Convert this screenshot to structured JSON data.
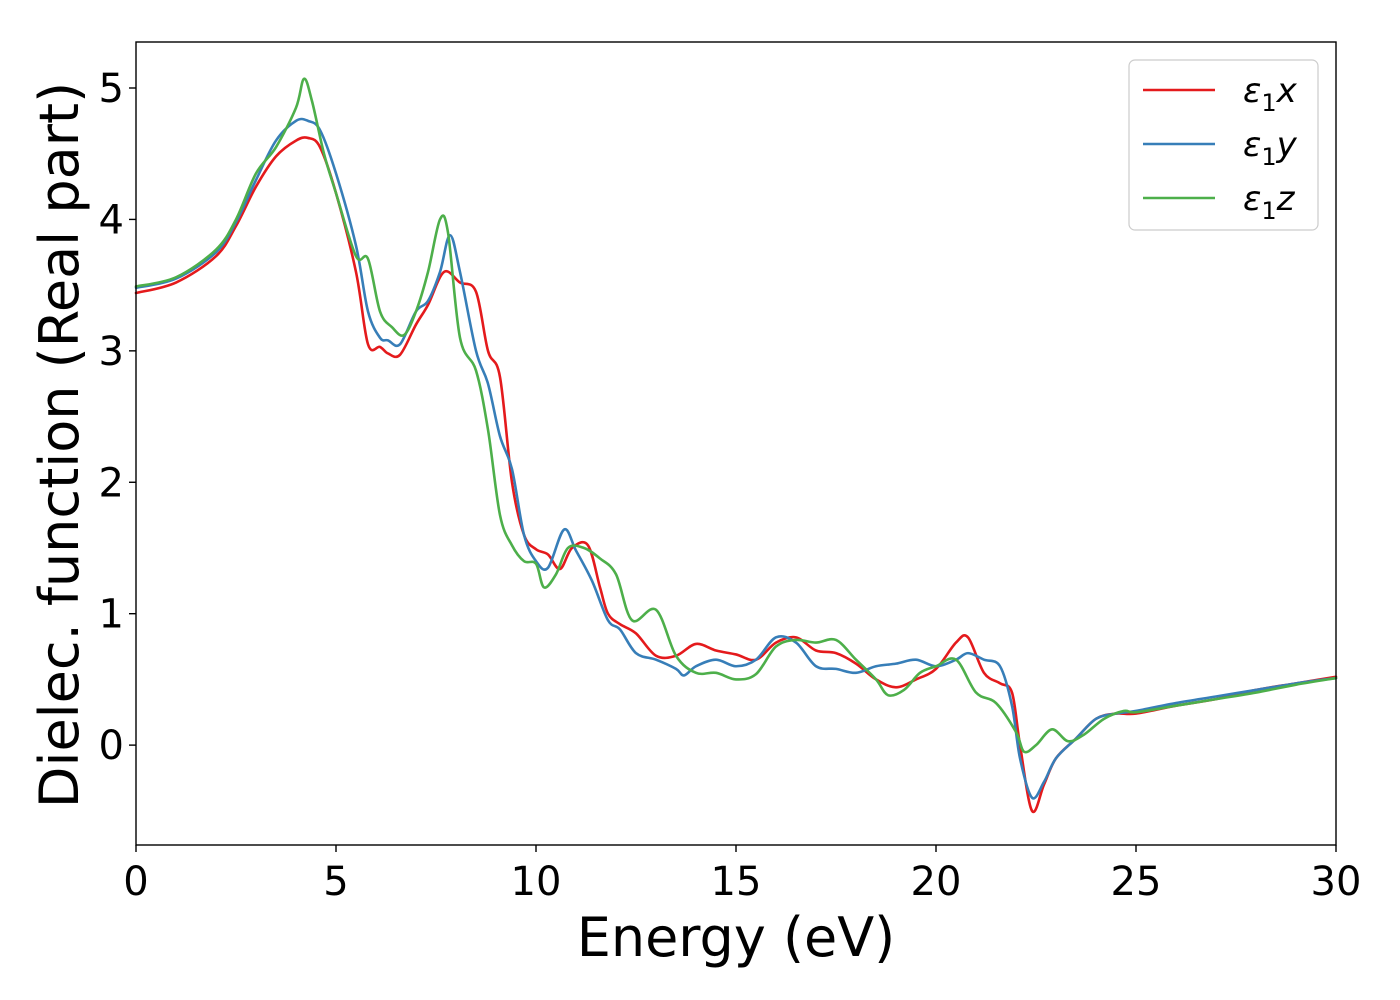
{
  "chart_data": {
    "type": "line",
    "title": "",
    "xlabel": "Energy (eV)",
    "ylabel": "Dielec. function (Real part)",
    "xlim": [
      0,
      30
    ],
    "ylim": [
      -0.76,
      5.35
    ],
    "xticks": [
      0,
      5,
      10,
      15,
      20,
      25,
      30
    ],
    "yticks": [
      0,
      1,
      2,
      3,
      4,
      5
    ],
    "grid": false,
    "legend_position": "top-right",
    "series": [
      {
        "name": "ε₁x",
        "legend_base": "ε",
        "legend_sub": "1",
        "legend_var": "x",
        "color": "#e41a1c",
        "x": [
          0,
          1,
          2,
          2.5,
          3,
          3.5,
          4,
          4.3,
          4.6,
          5,
          5.5,
          5.8,
          6.1,
          6.3,
          6.6,
          7,
          7.3,
          7.7,
          8.1,
          8.5,
          8.8,
          9.1,
          9.4,
          9.7,
          10,
          10.3,
          10.6,
          10.9,
          11.3,
          11.6,
          11.8,
          12.1,
          12.5,
          13,
          13.5,
          14,
          14.5,
          15,
          15.5,
          16,
          16.5,
          17,
          17.5,
          18,
          18.5,
          19,
          19.5,
          20,
          20.5,
          20.8,
          21.2,
          21.6,
          21.9,
          22.1,
          22.4,
          22.7,
          23,
          23.5,
          24,
          24.5,
          25,
          26,
          27,
          28,
          29,
          30
        ],
        "y": [
          3.44,
          3.52,
          3.72,
          3.95,
          4.25,
          4.48,
          4.6,
          4.62,
          4.55,
          4.2,
          3.6,
          3.05,
          3.03,
          2.98,
          2.97,
          3.2,
          3.35,
          3.6,
          3.52,
          3.45,
          3.0,
          2.8,
          2.0,
          1.6,
          1.49,
          1.45,
          1.34,
          1.5,
          1.52,
          1.2,
          1.0,
          0.92,
          0.85,
          0.68,
          0.68,
          0.77,
          0.72,
          0.69,
          0.65,
          0.78,
          0.82,
          0.72,
          0.7,
          0.62,
          0.5,
          0.44,
          0.5,
          0.58,
          0.78,
          0.82,
          0.55,
          0.47,
          0.4,
          0.0,
          -0.5,
          -0.3,
          -0.1,
          0.05,
          0.2,
          0.24,
          0.24,
          0.3,
          0.35,
          0.42,
          0.47,
          0.52
        ]
      },
      {
        "name": "ε₁y",
        "legend_base": "ε",
        "legend_sub": "1",
        "legend_var": "y",
        "color": "#377eb8",
        "x": [
          0,
          1,
          2,
          2.5,
          3,
          3.5,
          4,
          4.3,
          4.6,
          5,
          5.5,
          5.8,
          6.1,
          6.3,
          6.6,
          7,
          7.3,
          7.6,
          7.85,
          8.1,
          8.5,
          8.8,
          9.1,
          9.4,
          9.7,
          10,
          10.3,
          10.7,
          11,
          11.4,
          11.8,
          12.1,
          12.5,
          13,
          13.5,
          13.7,
          14,
          14.5,
          15,
          15.5,
          16,
          16.5,
          17,
          17.5,
          18,
          18.5,
          19,
          19.5,
          20,
          20.5,
          20.8,
          21.2,
          21.6,
          21.9,
          22.1,
          22.4,
          22.7,
          23,
          23.5,
          24,
          24.5,
          25,
          26,
          27,
          28,
          29,
          30
        ],
        "y": [
          3.48,
          3.55,
          3.75,
          3.98,
          4.3,
          4.6,
          4.75,
          4.75,
          4.68,
          4.35,
          3.8,
          3.3,
          3.1,
          3.08,
          3.05,
          3.3,
          3.38,
          3.6,
          3.88,
          3.6,
          3.0,
          2.75,
          2.35,
          2.1,
          1.6,
          1.4,
          1.35,
          1.64,
          1.48,
          1.25,
          0.95,
          0.88,
          0.7,
          0.65,
          0.58,
          0.53,
          0.6,
          0.65,
          0.6,
          0.65,
          0.82,
          0.78,
          0.6,
          0.58,
          0.55,
          0.6,
          0.62,
          0.65,
          0.6,
          0.65,
          0.7,
          0.65,
          0.6,
          0.3,
          -0.1,
          -0.4,
          -0.28,
          -0.1,
          0.05,
          0.2,
          0.24,
          0.26,
          0.32,
          0.37,
          0.42,
          0.47,
          0.51
        ]
      },
      {
        "name": "ε₁z",
        "legend_base": "ε",
        "legend_sub": "1",
        "legend_var": "z",
        "color": "#4daf4a",
        "x": [
          0,
          1,
          2,
          2.5,
          3,
          3.5,
          4,
          4.2,
          4.4,
          4.7,
          5,
          5.5,
          5.8,
          6.1,
          6.4,
          6.7,
          7,
          7.3,
          7.6,
          7.8,
          8.1,
          8.5,
          8.8,
          9.1,
          9.4,
          9.7,
          10,
          10.2,
          10.5,
          10.8,
          11.2,
          11.6,
          12,
          12.4,
          13,
          13.5,
          14,
          14.5,
          15,
          15.5,
          16,
          16.5,
          17,
          17.5,
          18,
          18.5,
          18.8,
          19.2,
          19.6,
          20,
          20.5,
          21,
          21.5,
          22,
          22.2,
          22.5,
          22.9,
          23.3,
          23.7,
          24.2,
          24.7,
          25,
          26,
          27,
          28,
          29,
          30
        ],
        "y": [
          3.49,
          3.56,
          3.77,
          4.0,
          4.35,
          4.55,
          4.85,
          5.07,
          4.9,
          4.5,
          4.2,
          3.72,
          3.7,
          3.3,
          3.18,
          3.12,
          3.3,
          3.6,
          4.0,
          3.9,
          3.1,
          2.85,
          2.4,
          1.75,
          1.52,
          1.4,
          1.38,
          1.2,
          1.3,
          1.5,
          1.5,
          1.42,
          1.3,
          0.95,
          1.03,
          0.68,
          0.55,
          0.55,
          0.5,
          0.54,
          0.75,
          0.8,
          0.78,
          0.8,
          0.65,
          0.5,
          0.38,
          0.42,
          0.55,
          0.6,
          0.65,
          0.4,
          0.32,
          0.1,
          -0.05,
          0.0,
          0.12,
          0.03,
          0.08,
          0.2,
          0.26,
          0.25,
          0.3,
          0.35,
          0.4,
          0.46,
          0.51
        ]
      }
    ]
  }
}
